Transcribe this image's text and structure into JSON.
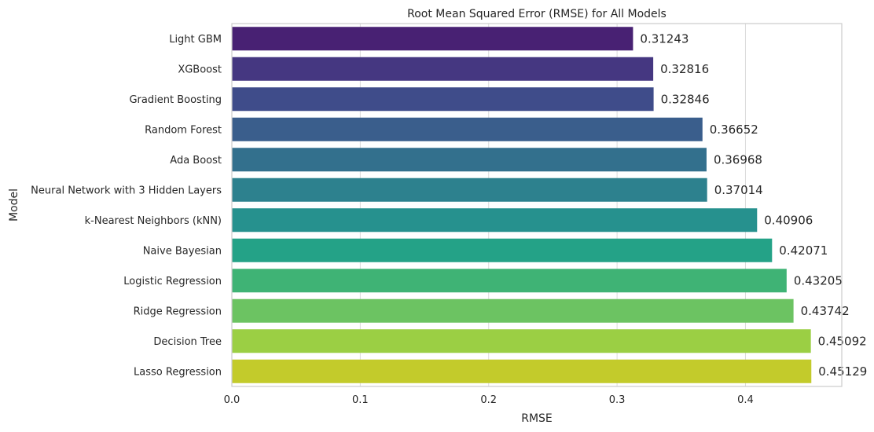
{
  "chart_data": {
    "type": "bar",
    "orientation": "horizontal",
    "title": "Root Mean Squared Error (RMSE) for All Models",
    "xlabel": "RMSE",
    "ylabel": "Model",
    "xlim": [
      0,
      0.475
    ],
    "xticks": [
      0.0,
      0.1,
      0.2,
      0.3,
      0.4
    ],
    "xtick_labels": [
      "0.0",
      "0.1",
      "0.2",
      "0.3",
      "0.4"
    ],
    "grid": true,
    "categories": [
      "Light GBM",
      "XGBoost",
      "Gradient Boosting",
      "Random Forest",
      "Ada Boost",
      "Neural Network with 3 Hidden Layers",
      "k-Nearest Neighbors (kNN)",
      "Naive Bayesian",
      "Logistic Regression",
      "Ridge Regression",
      "Decision Tree",
      "Lasso Regression"
    ],
    "values": [
      0.31243,
      0.32816,
      0.32846,
      0.36652,
      0.36968,
      0.37014,
      0.40906,
      0.42071,
      0.43205,
      0.43742,
      0.45092,
      0.45129
    ],
    "value_labels": [
      "0.31243",
      "0.32816",
      "0.32846",
      "0.36652",
      "0.36968",
      "0.37014",
      "0.40906",
      "0.42071",
      "0.43205",
      "0.43742",
      "0.45092",
      "0.45129"
    ],
    "colors": [
      "#482173",
      "#453781",
      "#3f4c8a",
      "#3a5e8c",
      "#33708d",
      "#2d818e",
      "#26918e",
      "#24a287",
      "#3fb375",
      "#6cc362",
      "#9bcf44",
      "#c3cb2b"
    ]
  }
}
